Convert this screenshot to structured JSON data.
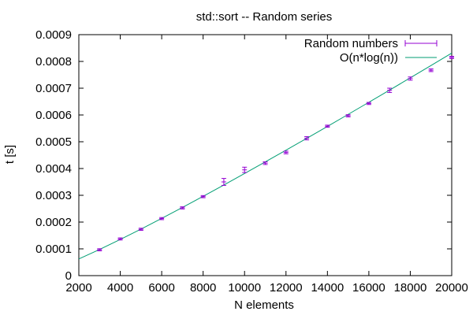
{
  "chart_data": {
    "type": "scatter",
    "title": "std::sort -- Random series",
    "xlabel": "N elements",
    "ylabel": "t [s]",
    "xlim": [
      2000,
      20000
    ],
    "ylim": [
      0,
      0.0009
    ],
    "x_ticks": [
      2000,
      4000,
      6000,
      8000,
      10000,
      12000,
      14000,
      16000,
      18000,
      20000
    ],
    "y_ticks": [
      0,
      0.0001,
      0.0002,
      0.0003,
      0.0004,
      0.0005,
      0.0006,
      0.0007,
      0.0008,
      0.0009
    ],
    "x_tick_labels": [
      "2000",
      "4000",
      "6000",
      "8000",
      "10000",
      "12000",
      "14000",
      "16000",
      "18000",
      "20000"
    ],
    "y_tick_labels": [
      "0",
      "0.0001",
      "0.0002",
      "0.0003",
      "0.0004",
      "0.0005",
      "0.0006",
      "0.0007",
      "0.0008",
      "0.0009"
    ],
    "grid": false,
    "legend_position": "top-right",
    "series": [
      {
        "name": "Random numbers",
        "type": "errorbars",
        "color": "#9400d3",
        "x": [
          3000,
          4000,
          5000,
          6000,
          7000,
          8000,
          9000,
          10000,
          11000,
          12000,
          13000,
          14000,
          15000,
          16000,
          17000,
          18000,
          19000,
          20000
        ],
        "y": [
          9.65e-05,
          0.000137,
          0.000173,
          0.000213,
          0.000253,
          0.000295,
          0.00035,
          0.000395,
          0.00042,
          0.00046,
          0.000513,
          0.000558,
          0.000597,
          0.000643,
          0.000692,
          0.000736,
          0.000767,
          0.000815
        ],
        "err": [
          4e-06,
          4e-06,
          4e-06,
          4e-06,
          4e-06,
          4e-06,
          1.3e-05,
          1e-05,
          5e-06,
          5e-06,
          6e-06,
          4e-06,
          4e-06,
          4e-06,
          8e-06,
          6e-06,
          5e-06,
          4e-06
        ]
      },
      {
        "name": "O(n*log(n))",
        "type": "line",
        "color": "#009e73",
        "x": [
          2000,
          3000,
          4000,
          5000,
          6000,
          7000,
          8000,
          9000,
          10000,
          11000,
          12000,
          13000,
          14000,
          15000,
          16000,
          17000,
          18000,
          19000,
          20000
        ],
        "y": [
          6.23e-05,
          9.77e-05,
          0.0001351,
          0.0001738,
          0.0002138,
          0.0002546,
          0.0002962,
          0.0003385,
          0.0003813,
          0.0004247,
          0.0004685,
          0.0005127,
          0.0005573,
          0.0006022,
          0.0006474,
          0.0006929,
          0.0007387,
          0.0007847,
          0.0008309
        ]
      }
    ]
  }
}
